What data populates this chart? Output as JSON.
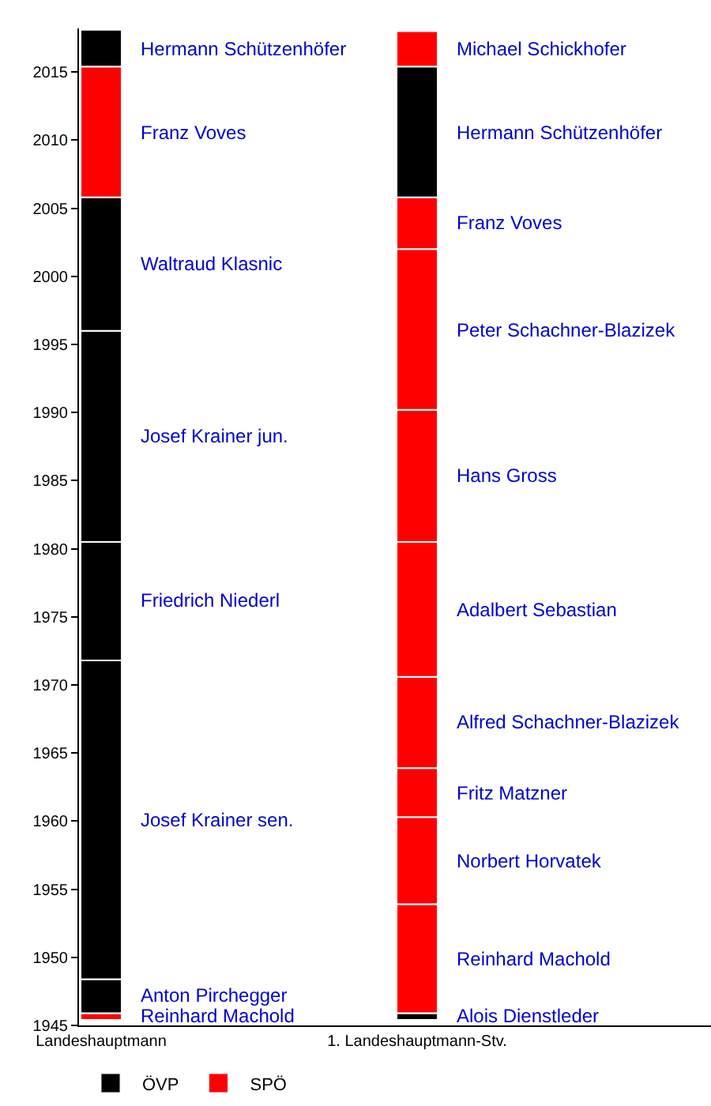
{
  "chart_data": {
    "type": "bar",
    "categories": [
      "Landeshauptmann",
      "1. Landeshauptmann-Stv."
    ],
    "ylim": [
      1945,
      2018.2
    ],
    "yticks": [
      1945,
      1950,
      1955,
      1960,
      1965,
      1970,
      1975,
      1980,
      1985,
      1990,
      1995,
      2000,
      2005,
      2010,
      2015
    ],
    "legend": "bottom left",
    "series": [
      {
        "name": "Reinhard Machold",
        "color": "#ff0000",
        "base": [
          1945.4,
          null
        ],
        "values": [
          0.5,
          null
        ]
      },
      {
        "name": "Anton Pirchegger",
        "color": "#000000",
        "base": [
          1945.9,
          null
        ],
        "values": [
          2.5,
          null
        ]
      },
      {
        "name": "Josef Krainer sen.",
        "color": "#000000",
        "base": [
          1948.4,
          null
        ],
        "values": [
          23.4,
          null
        ]
      },
      {
        "name": "Friedrich Niederl",
        "color": "#000000",
        "base": [
          1971.8,
          null
        ],
        "values": [
          8.7,
          null
        ]
      },
      {
        "name": "Josef Krainer jun.",
        "color": "#000000",
        "base": [
          1980.5,
          null
        ],
        "values": [
          15.5,
          null
        ]
      },
      {
        "name": "Waltraud Klasnic",
        "color": "#000000",
        "base": [
          1996.0,
          null
        ],
        "values": [
          9.8,
          null
        ]
      },
      {
        "name": "Franz Voves",
        "color": "#ff0000",
        "base": [
          2005.8,
          null
        ],
        "values": [
          9.6,
          null
        ]
      },
      {
        "name": "Hermann Schützenhöfer",
        "color": "#000000",
        "base": [
          2015.4,
          null
        ],
        "values": [
          2.7,
          null
        ]
      },
      {
        "name": "Alois Dienstleder",
        "color": "#000000",
        "base": [
          null,
          1945.4
        ],
        "values": [
          null,
          0.5
        ]
      },
      {
        "name": "Reinhard Machold",
        "color": "#ff0000",
        "base": [
          null,
          1945.9
        ],
        "values": [
          null,
          8.0
        ]
      },
      {
        "name": "Norbert Horvatek",
        "color": "#ff0000",
        "base": [
          null,
          1953.9
        ],
        "values": [
          null,
          6.4
        ]
      },
      {
        "name": "Fritz Matzner",
        "color": "#ff0000",
        "base": [
          null,
          1960.3
        ],
        "values": [
          null,
          3.6
        ]
      },
      {
        "name": "Alfred Schachner-Blazizek",
        "color": "#ff0000",
        "base": [
          null,
          1963.9
        ],
        "values": [
          null,
          6.7
        ]
      },
      {
        "name": "Adalbert Sebastian",
        "color": "#ff0000",
        "base": [
          null,
          1970.6
        ],
        "values": [
          null,
          9.9
        ]
      },
      {
        "name": "Hans Gross",
        "color": "#ff0000",
        "base": [
          null,
          1980.5
        ],
        "values": [
          null,
          9.7
        ]
      },
      {
        "name": "Peter Schachner-Blazizek",
        "color": "#ff0000",
        "base": [
          null,
          1990.2
        ],
        "values": [
          null,
          11.8
        ]
      },
      {
        "name": "Franz Voves",
        "color": "#ff0000",
        "base": [
          null,
          2002.0
        ],
        "values": [
          null,
          3.8
        ]
      },
      {
        "name": "Hermann Schützenhöfer",
        "color": "#000000",
        "base": [
          null,
          2005.8
        ],
        "values": [
          null,
          9.6
        ]
      },
      {
        "name": "Michael Schickhofer",
        "color": "#ff0000",
        "base": [
          null,
          2015.4
        ],
        "values": [
          null,
          2.6
        ]
      },
      {
        "name": "ÖVP",
        "color": "#000000",
        "values": [
          null,
          null
        ]
      },
      {
        "name": "SPÖ",
        "color": "#ff0000",
        "values": [
          null,
          null
        ]
      }
    ]
  }
}
